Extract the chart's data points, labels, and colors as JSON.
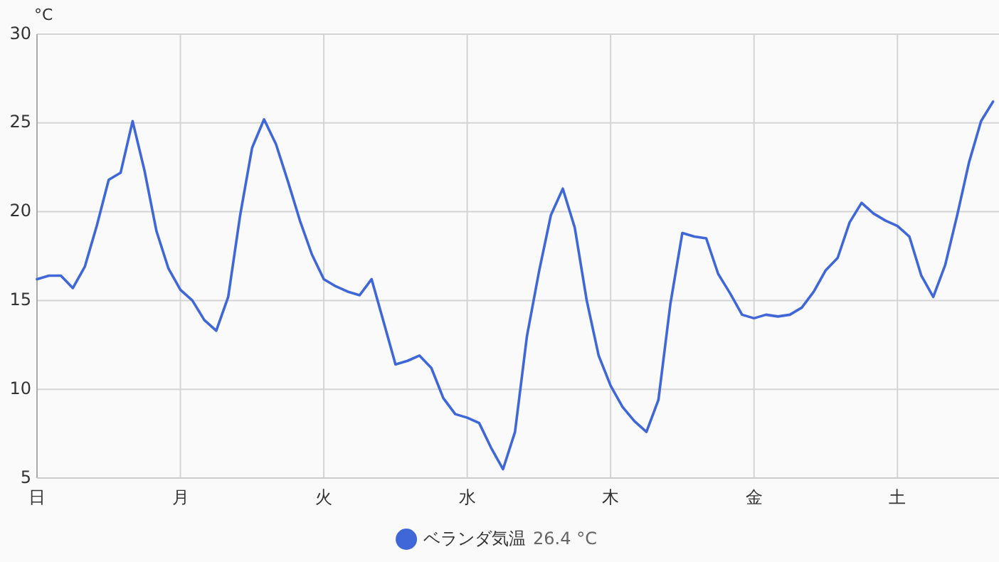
{
  "chart_data": {
    "type": "line",
    "ylabel": "°C",
    "categories": [
      "日",
      null,
      null,
      null,
      null,
      null,
      null,
      null,
      null,
      null,
      null,
      null,
      "月",
      null,
      null,
      null,
      null,
      null,
      null,
      null,
      null,
      null,
      null,
      null,
      "火",
      null,
      null,
      null,
      null,
      null,
      null,
      null,
      null,
      null,
      null,
      null,
      "水",
      null,
      null,
      null,
      null,
      null,
      null,
      null,
      null,
      null,
      null,
      null,
      "木",
      null,
      null,
      null,
      null,
      null,
      null,
      null,
      null,
      null,
      null,
      null,
      "金",
      null,
      null,
      null,
      null,
      null,
      null,
      null,
      null,
      null,
      null,
      null,
      "土",
      null,
      null,
      null,
      null,
      null,
      null,
      null,
      null
    ],
    "series": [
      {
        "name": "ベランダ気温",
        "color": "#3f67d8",
        "values": [
          16.2,
          16.4,
          16.4,
          15.7,
          16.9,
          19.2,
          21.8,
          22.2,
          25.1,
          22.3,
          18.9,
          16.8,
          15.6,
          15.0,
          13.9,
          13.3,
          15.2,
          19.8,
          23.6,
          25.2,
          23.8,
          21.7,
          19.5,
          17.6,
          16.2,
          15.8,
          15.5,
          15.3,
          16.2,
          13.8,
          11.4,
          11.6,
          11.9,
          11.2,
          9.5,
          8.6,
          8.4,
          8.1,
          6.7,
          5.5,
          7.6,
          13.0,
          16.6,
          19.8,
          21.3,
          19.1,
          15.0,
          11.9,
          10.2,
          9.0,
          8.2,
          7.6,
          9.4,
          14.8,
          18.8,
          18.6,
          18.5,
          16.5,
          15.4,
          14.2,
          14.0,
          14.2,
          14.1,
          14.2,
          14.6,
          15.5,
          16.7,
          17.4,
          19.4,
          20.5,
          19.9,
          19.5,
          19.2,
          18.6,
          16.4,
          15.2,
          17.0,
          19.8,
          22.8,
          25.1,
          26.2
        ]
      }
    ],
    "ylim": [
      5,
      30
    ],
    "yticks": [
      5,
      10,
      15,
      20,
      25,
      30
    ],
    "grid": true,
    "legend": "bottom",
    "annotations": [
      "26.4 °C"
    ]
  }
}
